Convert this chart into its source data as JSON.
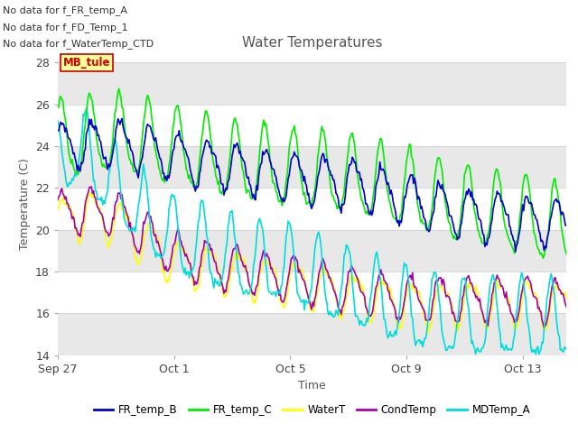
{
  "title": "Water Temperatures",
  "xlabel": "Time",
  "ylabel": "Temperature (C)",
  "ylim": [
    14,
    28.5
  ],
  "yticks": [
    14,
    16,
    18,
    20,
    22,
    24,
    26,
    28
  ],
  "colors": {
    "FR_temp_B": "#0000cc",
    "FR_temp_C": "#00ee00",
    "WaterT": "#ffff00",
    "CondTemp": "#aa00aa",
    "MDTemp_A": "#00dddd"
  },
  "legend_labels": [
    "FR_temp_B",
    "FR_temp_C",
    "WaterT",
    "CondTemp",
    "MDTemp_A"
  ],
  "no_data_texts": [
    "No data for f_FR_temp_A",
    "No data for f_FD_Temp_1",
    "No data for f_WaterTemp_CTD"
  ],
  "mb_tule_label": "MB_tule",
  "x_tick_labels": [
    "Sep 27",
    "Oct 1",
    "Oct 5",
    "Oct 9",
    "Oct 13"
  ],
  "x_tick_positions": [
    0,
    4,
    8,
    12,
    16
  ],
  "background_color": "#ffffff",
  "band_colors": [
    "#e8e8e8",
    "#ffffff"
  ],
  "linewidth": 1.2,
  "n_days": 17.5,
  "n_points": 500,
  "figsize": [
    6.4,
    4.8
  ],
  "dpi": 100
}
